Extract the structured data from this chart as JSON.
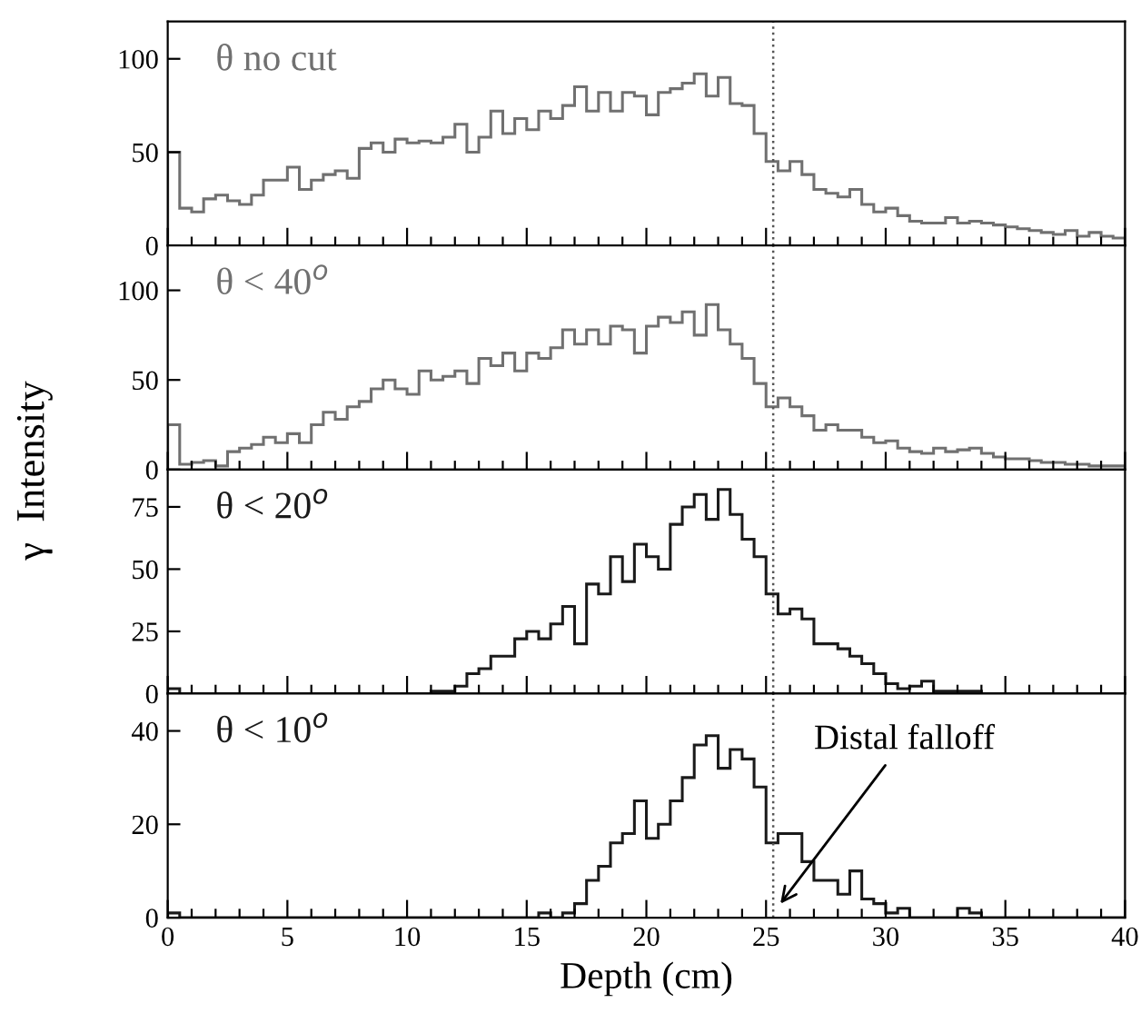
{
  "chart_data": [
    {
      "type": "histogram",
      "title": "θ no cut",
      "ylabel": "γ  Intensity",
      "color": "#707070",
      "bins": [
        0,
        0.5,
        1,
        1.5,
        2,
        2.5,
        3,
        3.5,
        4,
        4.5,
        5,
        5.5,
        6,
        6.5,
        7,
        7.5,
        8,
        8.5,
        9,
        9.5,
        10,
        10.5,
        11,
        11.5,
        12,
        12.5,
        13,
        13.5,
        14,
        14.5,
        15,
        15.5,
        16,
        16.5,
        17,
        17.5,
        18,
        18.5,
        19,
        19.5,
        20,
        20.5,
        21,
        21.5,
        22,
        22.5,
        23,
        23.5,
        24,
        24.5,
        25,
        25.5,
        26,
        26.5,
        27,
        27.5,
        28,
        28.5,
        29,
        29.5,
        30,
        30.5,
        31,
        31.5,
        32,
        32.5,
        33,
        33.5,
        34,
        34.5,
        35,
        35.5,
        36,
        36.5,
        37,
        37.5,
        38,
        38.5,
        39,
        39.5,
        40
      ],
      "values": [
        50,
        20,
        18,
        25,
        27,
        24,
        22,
        27,
        35,
        35,
        42,
        30,
        35,
        38,
        40,
        36,
        52,
        55,
        50,
        57,
        55,
        56,
        55,
        58,
        65,
        50,
        58,
        72,
        60,
        68,
        62,
        72,
        68,
        75,
        85,
        72,
        82,
        72,
        82,
        80,
        70,
        82,
        84,
        87,
        92,
        80,
        90,
        76,
        75,
        60,
        45,
        40,
        45,
        38,
        30,
        28,
        26,
        30,
        22,
        18,
        20,
        16,
        13,
        12,
        12,
        15,
        12,
        13,
        12,
        11,
        10,
        9,
        8,
        7,
        6,
        8,
        5,
        7,
        5,
        4
      ],
      "xlim": [
        0,
        40
      ],
      "ylim": [
        0,
        120
      ],
      "yticks": [
        0,
        50,
        100
      ],
      "xticks": [
        0,
        {
          "value": 1,
          "label": null
        },
        {
          "value": 2,
          "label": null
        },
        {
          "value": 3,
          "label": null
        },
        {
          "value": 4,
          "label": null
        },
        5,
        {
          "value": 6,
          "label": null
        },
        {
          "value": 7,
          "label": null
        },
        {
          "value": 8,
          "label": null
        },
        {
          "value": 9,
          "label": null
        },
        10,
        {
          "value": 11,
          "label": null
        },
        {
          "value": 12,
          "label": null
        },
        {
          "value": 13,
          "label": null
        },
        {
          "value": 14,
          "label": null
        },
        15,
        {
          "value": 16,
          "label": null
        },
        {
          "value": 17,
          "label": null
        },
        {
          "value": 18,
          "label": null
        },
        {
          "value": 19,
          "label": null
        },
        20,
        {
          "value": 21,
          "label": null
        },
        {
          "value": 22,
          "label": null
        },
        {
          "value": 23,
          "label": null
        },
        {
          "value": 24,
          "label": null
        },
        25,
        {
          "value": 26,
          "label": null
        },
        {
          "value": 27,
          "label": null
        },
        {
          "value": 28,
          "label": null
        },
        {
          "value": 29,
          "label": null
        },
        30,
        {
          "value": 31,
          "label": null
        },
        {
          "value": 32,
          "label": null
        },
        {
          "value": 33,
          "label": null
        },
        {
          "value": 34,
          "label": null
        },
        35,
        {
          "value": 36,
          "label": null
        },
        {
          "value": 37,
          "label": null
        },
        {
          "value": 38,
          "label": null
        },
        {
          "value": 39,
          "label": null
        },
        40
      ],
      "tick_labels": "y",
      "grid": false,
      "ref_lines": [
        {
          "axis": "x",
          "value": 25.3,
          "line_style": "dotted",
          "color": "#555555"
        }
      ]
    },
    {
      "type": "histogram",
      "title": "θ < 40$^{o}$",
      "color": "#707070",
      "bins": [
        0,
        0.5,
        1,
        1.5,
        2,
        2.5,
        3,
        3.5,
        4,
        4.5,
        5,
        5.5,
        6,
        6.5,
        7,
        7.5,
        8,
        8.5,
        9,
        9.5,
        10,
        10.5,
        11,
        11.5,
        12,
        12.5,
        13,
        13.5,
        14,
        14.5,
        15,
        15.5,
        16,
        16.5,
        17,
        17.5,
        18,
        18.5,
        19,
        19.5,
        20,
        20.5,
        21,
        21.5,
        22,
        22.5,
        23,
        23.5,
        24,
        24.5,
        25,
        25.5,
        26,
        26.5,
        27,
        27.5,
        28,
        28.5,
        29,
        29.5,
        30,
        30.5,
        31,
        31.5,
        32,
        32.5,
        33,
        33.5,
        34,
        34.5,
        35,
        35.5,
        36,
        36.5,
        37,
        37.5,
        38,
        38.5,
        39,
        39.5,
        40
      ],
      "values": [
        25,
        3,
        4,
        5,
        2,
        10,
        12,
        14,
        18,
        15,
        20,
        15,
        25,
        32,
        28,
        35,
        38,
        45,
        50,
        45,
        42,
        55,
        50,
        52,
        55,
        48,
        62,
        58,
        65,
        55,
        65,
        62,
        68,
        78,
        70,
        78,
        70,
        80,
        78,
        65,
        80,
        85,
        82,
        88,
        75,
        92,
        78,
        70,
        62,
        48,
        35,
        40,
        35,
        30,
        22,
        25,
        22,
        22,
        18,
        15,
        16,
        12,
        10,
        9,
        12,
        10,
        11,
        12,
        9,
        7,
        6,
        6,
        5,
        4,
        4,
        3,
        3,
        2,
        2,
        2
      ],
      "xlim": [
        0,
        40
      ],
      "ylim": [
        0,
        125
      ],
      "yticks": [
        0,
        50,
        100
      ],
      "xticks": [
        0,
        {
          "value": 1,
          "label": null
        },
        {
          "value": 2,
          "label": null
        },
        {
          "value": 3,
          "label": null
        },
        {
          "value": 4,
          "label": null
        },
        5,
        {
          "value": 6,
          "label": null
        },
        {
          "value": 7,
          "label": null
        },
        {
          "value": 8,
          "label": null
        },
        {
          "value": 9,
          "label": null
        },
        10,
        {
          "value": 11,
          "label": null
        },
        {
          "value": 12,
          "label": null
        },
        {
          "value": 13,
          "label": null
        },
        {
          "value": 14,
          "label": null
        },
        15,
        {
          "value": 16,
          "label": null
        },
        {
          "value": 17,
          "label": null
        },
        {
          "value": 18,
          "label": null
        },
        {
          "value": 19,
          "label": null
        },
        20,
        {
          "value": 21,
          "label": null
        },
        {
          "value": 22,
          "label": null
        },
        {
          "value": 23,
          "label": null
        },
        {
          "value": 24,
          "label": null
        },
        25,
        {
          "value": 26,
          "label": null
        },
        {
          "value": 27,
          "label": null
        },
        {
          "value": 28,
          "label": null
        },
        {
          "value": 29,
          "label": null
        },
        30,
        {
          "value": 31,
          "label": null
        },
        {
          "value": 32,
          "label": null
        },
        {
          "value": 33,
          "label": null
        },
        {
          "value": 34,
          "label": null
        },
        35,
        {
          "value": 36,
          "label": null
        },
        {
          "value": 37,
          "label": null
        },
        {
          "value": 38,
          "label": null
        },
        {
          "value": 39,
          "label": null
        },
        40
      ],
      "tick_labels": "y",
      "grid": false,
      "ref_lines": [
        {
          "axis": "x",
          "value": 25.3,
          "line_style": "dotted",
          "color": "#555555"
        }
      ]
    },
    {
      "type": "histogram",
      "title": "θ < 20$^{o}$",
      "color": "#1a1a1a",
      "bins": [
        0,
        0.5,
        1,
        1.5,
        2,
        2.5,
        3,
        3.5,
        4,
        4.5,
        5,
        5.5,
        6,
        6.5,
        7,
        7.5,
        8,
        8.5,
        9,
        9.5,
        10,
        10.5,
        11,
        11.5,
        12,
        12.5,
        13,
        13.5,
        14,
        14.5,
        15,
        15.5,
        16,
        16.5,
        17,
        17.5,
        18,
        18.5,
        19,
        19.5,
        20,
        20.5,
        21,
        21.5,
        22,
        22.5,
        23,
        23.5,
        24,
        24.5,
        25,
        25.5,
        26,
        26.5,
        27,
        27.5,
        28,
        28.5,
        29,
        29.5,
        30,
        30.5,
        31,
        31.5,
        32,
        32.5,
        33,
        33.5,
        34,
        34.5,
        35,
        35.5,
        36,
        36.5,
        37,
        37.5,
        38,
        38.5,
        39,
        39.5,
        40
      ],
      "values": [
        2,
        0,
        0,
        0,
        0,
        0,
        0,
        0,
        0,
        0,
        0,
        0,
        0,
        0,
        0,
        0,
        0,
        0,
        0,
        0,
        0,
        0,
        1,
        1,
        3,
        8,
        10,
        15,
        15,
        22,
        25,
        22,
        28,
        35,
        20,
        44,
        40,
        55,
        45,
        60,
        55,
        50,
        68,
        75,
        80,
        70,
        82,
        72,
        62,
        55,
        40,
        32,
        34,
        30,
        20,
        20,
        18,
        15,
        12,
        8,
        4,
        2,
        3,
        5,
        1,
        1,
        1,
        1,
        0,
        0,
        0,
        0,
        0,
        0,
        0,
        0,
        0,
        0,
        0,
        0
      ],
      "xlim": [
        0,
        40
      ],
      "ylim": [
        0,
        90
      ],
      "yticks": [
        0,
        25,
        50,
        75
      ],
      "xticks": [
        0,
        {
          "value": 1,
          "label": null
        },
        {
          "value": 2,
          "label": null
        },
        {
          "value": 3,
          "label": null
        },
        {
          "value": 4,
          "label": null
        },
        5,
        {
          "value": 6,
          "label": null
        },
        {
          "value": 7,
          "label": null
        },
        {
          "value": 8,
          "label": null
        },
        {
          "value": 9,
          "label": null
        },
        10,
        {
          "value": 11,
          "label": null
        },
        {
          "value": 12,
          "label": null
        },
        {
          "value": 13,
          "label": null
        },
        {
          "value": 14,
          "label": null
        },
        15,
        {
          "value": 16,
          "label": null
        },
        {
          "value": 17,
          "label": null
        },
        {
          "value": 18,
          "label": null
        },
        {
          "value": 19,
          "label": null
        },
        20,
        {
          "value": 21,
          "label": null
        },
        {
          "value": 22,
          "label": null
        },
        {
          "value": 23,
          "label": null
        },
        {
          "value": 24,
          "label": null
        },
        25,
        {
          "value": 26,
          "label": null
        },
        {
          "value": 27,
          "label": null
        },
        {
          "value": 28,
          "label": null
        },
        {
          "value": 29,
          "label": null
        },
        30,
        {
          "value": 31,
          "label": null
        },
        {
          "value": 32,
          "label": null
        },
        {
          "value": 33,
          "label": null
        },
        {
          "value": 34,
          "label": null
        },
        35,
        {
          "value": 36,
          "label": null
        },
        {
          "value": 37,
          "label": null
        },
        {
          "value": 38,
          "label": null
        },
        {
          "value": 39,
          "label": null
        },
        40
      ],
      "tick_labels": "y",
      "grid": false,
      "ref_lines": [
        {
          "axis": "x",
          "value": 25.3,
          "line_style": "dotted",
          "color": "#555555"
        }
      ]
    },
    {
      "type": "histogram",
      "title": "θ < 10$^{o}$",
      "xlabel": "Depth (cm)",
      "color": "#1a1a1a",
      "bins": [
        0,
        0.5,
        1,
        1.5,
        2,
        2.5,
        3,
        3.5,
        4,
        4.5,
        5,
        5.5,
        6,
        6.5,
        7,
        7.5,
        8,
        8.5,
        9,
        9.5,
        10,
        10.5,
        11,
        11.5,
        12,
        12.5,
        13,
        13.5,
        14,
        14.5,
        15,
        15.5,
        16,
        16.5,
        17,
        17.5,
        18,
        18.5,
        19,
        19.5,
        20,
        20.5,
        21,
        21.5,
        22,
        22.5,
        23,
        23.5,
        24,
        24.5,
        25,
        25.5,
        26,
        26.5,
        27,
        27.5,
        28,
        28.5,
        29,
        29.5,
        30,
        30.5,
        31,
        31.5,
        32,
        32.5,
        33,
        33.5,
        34,
        34.5,
        35,
        35.5,
        36,
        36.5,
        37,
        37.5,
        38,
        38.5,
        39,
        39.5,
        40
      ],
      "values": [
        1,
        0,
        0,
        0,
        0,
        0,
        0,
        0,
        0,
        0,
        0,
        0,
        0,
        0,
        0,
        0,
        0,
        0,
        0,
        0,
        0,
        0,
        0,
        0,
        0,
        0,
        0,
        0,
        0,
        0,
        0,
        1,
        0,
        1,
        3,
        8,
        11,
        16,
        18,
        25,
        17,
        20,
        25,
        30,
        37,
        39,
        32,
        36,
        34,
        28,
        16,
        18,
        18,
        12,
        8,
        8,
        5,
        10,
        4,
        3,
        1,
        2,
        0,
        0,
        0,
        0,
        2,
        1,
        0,
        0,
        0,
        0,
        0,
        0,
        0,
        0,
        0,
        0,
        0,
        0
      ],
      "xlim": [
        0,
        40
      ],
      "ylim": [
        0,
        48
      ],
      "yticks": [
        0,
        20,
        40
      ],
      "xticks": [
        0,
        {
          "value": 1,
          "label": null
        },
        {
          "value": 2,
          "label": null
        },
        {
          "value": 3,
          "label": null
        },
        {
          "value": 4,
          "label": null
        },
        5,
        {
          "value": 6,
          "label": null
        },
        {
          "value": 7,
          "label": null
        },
        {
          "value": 8,
          "label": null
        },
        {
          "value": 9,
          "label": null
        },
        10,
        {
          "value": 11,
          "label": null
        },
        {
          "value": 12,
          "label": null
        },
        {
          "value": 13,
          "label": null
        },
        {
          "value": 14,
          "label": null
        },
        15,
        {
          "value": 16,
          "label": null
        },
        {
          "value": 17,
          "label": null
        },
        {
          "value": 18,
          "label": null
        },
        {
          "value": 19,
          "label": null
        },
        20,
        {
          "value": 21,
          "label": null
        },
        {
          "value": 22,
          "label": null
        },
        {
          "value": 23,
          "label": null
        },
        {
          "value": 24,
          "label": null
        },
        25,
        {
          "value": 26,
          "label": null
        },
        {
          "value": 27,
          "label": null
        },
        {
          "value": 28,
          "label": null
        },
        {
          "value": 29,
          "label": null
        },
        30,
        {
          "value": 31,
          "label": null
        },
        {
          "value": 32,
          "label": null
        },
        {
          "value": 33,
          "label": null
        },
        {
          "value": 34,
          "label": null
        },
        35,
        {
          "value": 36,
          "label": null
        },
        {
          "value": 37,
          "label": null
        },
        {
          "value": 38,
          "label": null
        },
        {
          "value": 39,
          "label": null
        },
        40
      ],
      "grid": false,
      "ref_lines": [
        {
          "axis": "x",
          "value": 25.3,
          "line_style": "dotted",
          "color": "#555555"
        }
      ],
      "annotations": [
        {
          "text": "Distal falloff",
          "x": 25.6,
          "y": 3
        }
      ]
    }
  ]
}
